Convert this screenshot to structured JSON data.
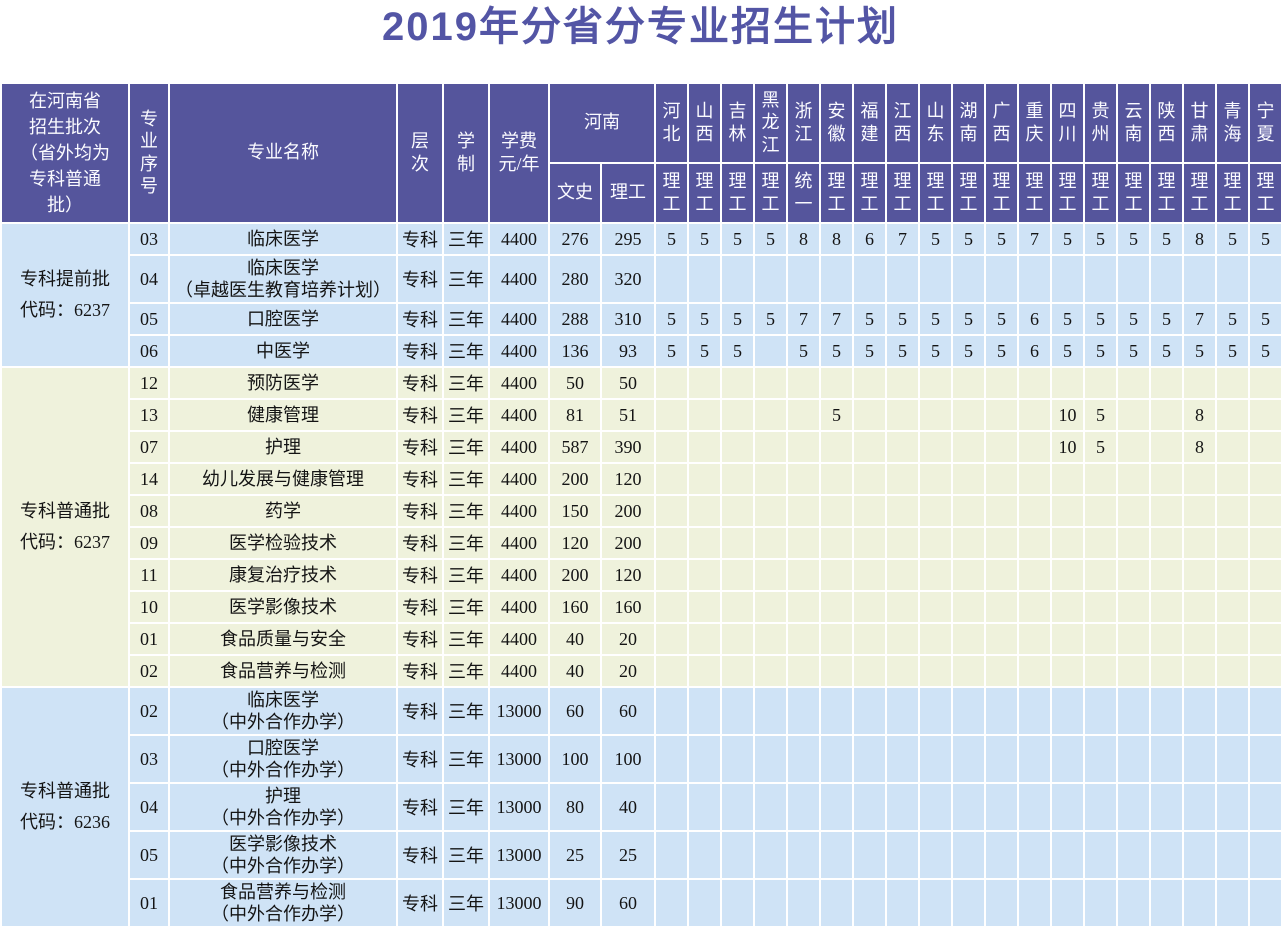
{
  "title": "2019年分省分专业招生计划",
  "colors": {
    "title_text": "#5355a5",
    "header_bg": "#55559c",
    "header_text": "#fbfbff",
    "row_blue": "#cfe3f6",
    "row_green": "#eff2dc",
    "grid": "#ffffff",
    "body_text": "#141414"
  },
  "table": {
    "header": {
      "batch": "在河南省\n招生批次\n（省外均为\n专科普通\n批）",
      "seq": "专业序号",
      "major": "专业名称",
      "level": "层次",
      "duration": "学制",
      "tuition": "学费元/年",
      "henan": "河南",
      "henan_sub": [
        "文史",
        "理工"
      ],
      "provinces": [
        {
          "name": "河北",
          "sub": "理工"
        },
        {
          "name": "山西",
          "sub": "理工"
        },
        {
          "name": "吉林",
          "sub": "理工"
        },
        {
          "name": "黑龙江",
          "sub": "理工"
        },
        {
          "name": "浙江",
          "sub": "统一"
        },
        {
          "name": "安徽",
          "sub": "理工"
        },
        {
          "name": "福建",
          "sub": "理工"
        },
        {
          "name": "江西",
          "sub": "理工"
        },
        {
          "name": "山东",
          "sub": "理工"
        },
        {
          "name": "湖南",
          "sub": "理工"
        },
        {
          "name": "广西",
          "sub": "理工"
        },
        {
          "name": "重庆",
          "sub": "理工"
        },
        {
          "name": "四川",
          "sub": "理工"
        },
        {
          "name": "贵州",
          "sub": "理工"
        },
        {
          "name": "云南",
          "sub": "理工"
        },
        {
          "name": "陕西",
          "sub": "理工"
        },
        {
          "name": "甘肃",
          "sub": "理工"
        },
        {
          "name": "青海",
          "sub": "理工"
        },
        {
          "name": "宁夏",
          "sub": "理工"
        }
      ]
    },
    "groups": [
      {
        "label": "专科提前批\n代码：6237",
        "color": "blue",
        "rows": [
          {
            "seq": "03",
            "major": "临床医学",
            "level": "专科",
            "duration": "三年",
            "tuition": "4400",
            "wenshi": "276",
            "ligong": "295",
            "provinces": [
              "5",
              "5",
              "5",
              "5",
              "8",
              "8",
              "6",
              "7",
              "5",
              "5",
              "5",
              "7",
              "5",
              "5",
              "5",
              "5",
              "8",
              "5",
              "5"
            ]
          },
          {
            "seq": "04",
            "major": "临床医学\n（卓越医生教育培养计划）",
            "level": "专科",
            "duration": "三年",
            "tuition": "4400",
            "wenshi": "280",
            "ligong": "320",
            "provinces": [
              "",
              "",
              "",
              "",
              "",
              "",
              "",
              "",
              "",
              "",
              "",
              "",
              "",
              "",
              "",
              "",
              "",
              "",
              ""
            ]
          },
          {
            "seq": "05",
            "major": "口腔医学",
            "level": "专科",
            "duration": "三年",
            "tuition": "4400",
            "wenshi": "288",
            "ligong": "310",
            "provinces": [
              "5",
              "5",
              "5",
              "5",
              "7",
              "7",
              "5",
              "5",
              "5",
              "5",
              "5",
              "6",
              "5",
              "5",
              "5",
              "5",
              "7",
              "5",
              "5"
            ]
          },
          {
            "seq": "06",
            "major": "中医学",
            "level": "专科",
            "duration": "三年",
            "tuition": "4400",
            "wenshi": "136",
            "ligong": "93",
            "provinces": [
              "5",
              "5",
              "5",
              "",
              "5",
              "5",
              "5",
              "5",
              "5",
              "5",
              "5",
              "6",
              "5",
              "5",
              "5",
              "5",
              "5",
              "5",
              "5"
            ]
          }
        ]
      },
      {
        "label": "专科普通批\n代码：6237",
        "color": "green",
        "rows": [
          {
            "seq": "12",
            "major": "预防医学",
            "level": "专科",
            "duration": "三年",
            "tuition": "4400",
            "wenshi": "50",
            "ligong": "50",
            "provinces": [
              "",
              "",
              "",
              "",
              "",
              "",
              "",
              "",
              "",
              "",
              "",
              "",
              "",
              "",
              "",
              "",
              "",
              "",
              ""
            ]
          },
          {
            "seq": "13",
            "major": "健康管理",
            "level": "专科",
            "duration": "三年",
            "tuition": "4400",
            "wenshi": "81",
            "ligong": "51",
            "provinces": [
              "",
              "",
              "",
              "",
              "",
              "5",
              "",
              "",
              "",
              "",
              "",
              "",
              "10",
              "5",
              "",
              "",
              "8",
              "",
              ""
            ]
          },
          {
            "seq": "07",
            "major": "护理",
            "level": "专科",
            "duration": "三年",
            "tuition": "4400",
            "wenshi": "587",
            "ligong": "390",
            "provinces": [
              "",
              "",
              "",
              "",
              "",
              "",
              "",
              "",
              "",
              "",
              "",
              "",
              "10",
              "5",
              "",
              "",
              "8",
              "",
              ""
            ]
          },
          {
            "seq": "14",
            "major": "幼儿发展与健康管理",
            "level": "专科",
            "duration": "三年",
            "tuition": "4400",
            "wenshi": "200",
            "ligong": "120",
            "provinces": [
              "",
              "",
              "",
              "",
              "",
              "",
              "",
              "",
              "",
              "",
              "",
              "",
              "",
              "",
              "",
              "",
              "",
              "",
              ""
            ]
          },
          {
            "seq": "08",
            "major": "药学",
            "level": "专科",
            "duration": "三年",
            "tuition": "4400",
            "wenshi": "150",
            "ligong": "200",
            "provinces": [
              "",
              "",
              "",
              "",
              "",
              "",
              "",
              "",
              "",
              "",
              "",
              "",
              "",
              "",
              "",
              "",
              "",
              "",
              ""
            ]
          },
          {
            "seq": "09",
            "major": "医学检验技术",
            "level": "专科",
            "duration": "三年",
            "tuition": "4400",
            "wenshi": "120",
            "ligong": "200",
            "provinces": [
              "",
              "",
              "",
              "",
              "",
              "",
              "",
              "",
              "",
              "",
              "",
              "",
              "",
              "",
              "",
              "",
              "",
              "",
              ""
            ]
          },
          {
            "seq": "11",
            "major": "康复治疗技术",
            "level": "专科",
            "duration": "三年",
            "tuition": "4400",
            "wenshi": "200",
            "ligong": "120",
            "provinces": [
              "",
              "",
              "",
              "",
              "",
              "",
              "",
              "",
              "",
              "",
              "",
              "",
              "",
              "",
              "",
              "",
              "",
              "",
              ""
            ]
          },
          {
            "seq": "10",
            "major": "医学影像技术",
            "level": "专科",
            "duration": "三年",
            "tuition": "4400",
            "wenshi": "160",
            "ligong": "160",
            "provinces": [
              "",
              "",
              "",
              "",
              "",
              "",
              "",
              "",
              "",
              "",
              "",
              "",
              "",
              "",
              "",
              "",
              "",
              "",
              ""
            ]
          },
          {
            "seq": "01",
            "major": "食品质量与安全",
            "level": "专科",
            "duration": "三年",
            "tuition": "4400",
            "wenshi": "40",
            "ligong": "20",
            "provinces": [
              "",
              "",
              "",
              "",
              "",
              "",
              "",
              "",
              "",
              "",
              "",
              "",
              "",
              "",
              "",
              "",
              "",
              "",
              ""
            ]
          },
          {
            "seq": "02",
            "major": "食品营养与检测",
            "level": "专科",
            "duration": "三年",
            "tuition": "4400",
            "wenshi": "40",
            "ligong": "20",
            "provinces": [
              "",
              "",
              "",
              "",
              "",
              "",
              "",
              "",
              "",
              "",
              "",
              "",
              "",
              "",
              "",
              "",
              "",
              "",
              ""
            ]
          }
        ]
      },
      {
        "label": "专科普通批\n代码：6236",
        "color": "blue",
        "rows": [
          {
            "seq": "02",
            "major": "临床医学\n（中外合作办学）",
            "level": "专科",
            "duration": "三年",
            "tuition": "13000",
            "wenshi": "60",
            "ligong": "60",
            "provinces": [
              "",
              "",
              "",
              "",
              "",
              "",
              "",
              "",
              "",
              "",
              "",
              "",
              "",
              "",
              "",
              "",
              "",
              "",
              ""
            ]
          },
          {
            "seq": "03",
            "major": "口腔医学\n（中外合作办学）",
            "level": "专科",
            "duration": "三年",
            "tuition": "13000",
            "wenshi": "100",
            "ligong": "100",
            "provinces": [
              "",
              "",
              "",
              "",
              "",
              "",
              "",
              "",
              "",
              "",
              "",
              "",
              "",
              "",
              "",
              "",
              "",
              "",
              ""
            ]
          },
          {
            "seq": "04",
            "major": "护理\n（中外合作办学）",
            "level": "专科",
            "duration": "三年",
            "tuition": "13000",
            "wenshi": "80",
            "ligong": "40",
            "provinces": [
              "",
              "",
              "",
              "",
              "",
              "",
              "",
              "",
              "",
              "",
              "",
              "",
              "",
              "",
              "",
              "",
              "",
              "",
              ""
            ]
          },
          {
            "seq": "05",
            "major": "医学影像技术\n（中外合作办学）",
            "level": "专科",
            "duration": "三年",
            "tuition": "13000",
            "wenshi": "25",
            "ligong": "25",
            "provinces": [
              "",
              "",
              "",
              "",
              "",
              "",
              "",
              "",
              "",
              "",
              "",
              "",
              "",
              "",
              "",
              "",
              "",
              "",
              ""
            ]
          },
          {
            "seq": "01",
            "major": "食品营养与检测\n（中外合作办学）",
            "level": "专科",
            "duration": "三年",
            "tuition": "13000",
            "wenshi": "90",
            "ligong": "60",
            "provinces": [
              "",
              "",
              "",
              "",
              "",
              "",
              "",
              "",
              "",
              "",
              "",
              "",
              "",
              "",
              "",
              "",
              "",
              "",
              ""
            ]
          }
        ]
      }
    ]
  }
}
